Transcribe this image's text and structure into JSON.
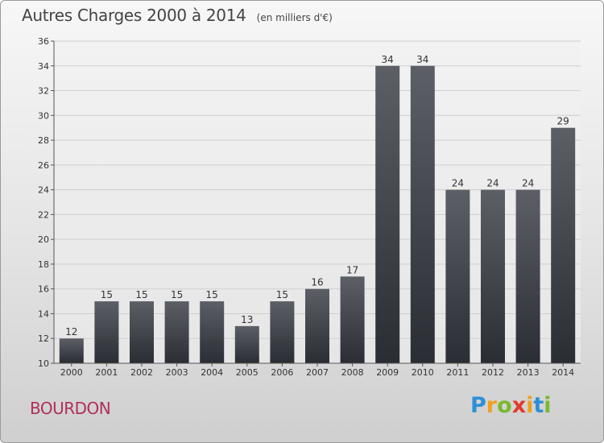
{
  "header": {
    "title": "Autres Charges 2000 à 2014",
    "subtitle": "(en milliers d'€)"
  },
  "footer": {
    "place": "BOURDON",
    "logo": {
      "letters": [
        "P",
        "r",
        "o",
        "x",
        "i",
        "t",
        "i"
      ],
      "colors": [
        "#2e8fd6",
        "#f0a020",
        "#7ab830",
        "#e03a30",
        "#f0a020",
        "#2e8fd6",
        "#7ab830"
      ]
    }
  },
  "chart_data": {
    "type": "bar",
    "title": "Autres Charges 2000 à 2014",
    "subtitle": "(en milliers d'€)",
    "categories": [
      "2000",
      "2001",
      "2002",
      "2003",
      "2004",
      "2005",
      "2006",
      "2007",
      "2008",
      "2009",
      "2010",
      "2011",
      "2012",
      "2013",
      "2014"
    ],
    "values": [
      12,
      15,
      15,
      15,
      15,
      13,
      15,
      16,
      17,
      34,
      34,
      24,
      24,
      24,
      29
    ],
    "ylim": [
      10,
      36
    ],
    "yticks": [
      10,
      12,
      14,
      16,
      18,
      20,
      22,
      24,
      26,
      28,
      30,
      32,
      34,
      36
    ],
    "grid": true,
    "colors": {
      "bar_top": "#5c6066",
      "bar_bottom": "#2a2d33",
      "grid": "#cfcfcf"
    }
  }
}
